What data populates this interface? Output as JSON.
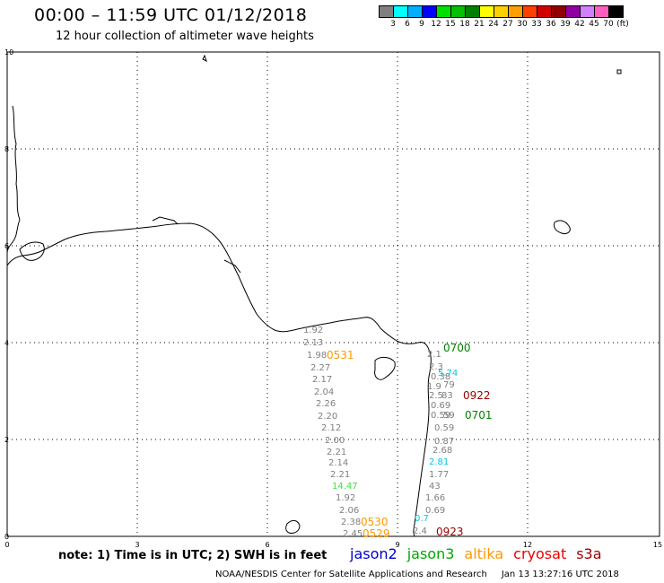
{
  "header": {
    "title": "00:00 – 11:59 UTC 01/12/2018",
    "subtitle": "12 hour collection of altimeter wave heights"
  },
  "colorbar": {
    "unit": "(ft)",
    "colors": [
      "#808080",
      "#00ffff",
      "#00b0ff",
      "#0000ff",
      "#00e000",
      "#00c000",
      "#008000",
      "#ffff00",
      "#ffd000",
      "#ffa000",
      "#ff4000",
      "#d00000",
      "#900000",
      "#9000a0",
      "#d080ff",
      "#ff60c0",
      "#000000"
    ],
    "labels": [
      "3",
      "6",
      "9",
      "12",
      "15",
      "18",
      "21",
      "24",
      "27",
      "30",
      "33",
      "36",
      "39",
      "42",
      "45",
      "70"
    ]
  },
  "axes": {
    "x_ticks": [
      "0",
      "3",
      "6",
      "9",
      "12",
      "15"
    ],
    "y_ticks": [
      "0",
      "2",
      "4",
      "6",
      "8",
      "10"
    ]
  },
  "map_labels": {
    "wave_heights": [
      {
        "text": "1.92",
        "color": "#808080"
      },
      {
        "text": "2.13",
        "color": "#808080"
      },
      {
        "text": "1.98",
        "color": "#808080"
      },
      {
        "text": "2.27",
        "color": "#808080"
      },
      {
        "text": "2.17",
        "color": "#808080"
      },
      {
        "text": "2.04",
        "color": "#808080"
      },
      {
        "text": "2.26",
        "color": "#808080"
      },
      {
        "text": "2.20",
        "color": "#808080"
      },
      {
        "text": "2.12",
        "color": "#808080"
      },
      {
        "text": "2.00",
        "color": "#808080"
      },
      {
        "text": "2.21",
        "color": "#808080"
      },
      {
        "text": "2.14",
        "color": "#808080"
      },
      {
        "text": "2.21",
        "color": "#808080"
      },
      {
        "text": "14.47",
        "color": "#40e040"
      },
      {
        "text": "1.92",
        "color": "#808080"
      },
      {
        "text": "2.06",
        "color": "#808080"
      },
      {
        "text": "2.38",
        "color": "#808080"
      },
      {
        "text": "2.45",
        "color": "#808080"
      },
      {
        "text": "2.1",
        "color": "#808080"
      },
      {
        "text": "2.3",
        "color": "#808080"
      },
      {
        "text": "0.38",
        "color": "#808080"
      },
      {
        "text": "5.74",
        "color": "#00c8e0"
      },
      {
        "text": "79",
        "color": "#808080"
      },
      {
        "text": "1.9",
        "color": "#808080"
      },
      {
        "text": "2.5",
        "color": "#808080"
      },
      {
        "text": "83",
        "color": "#808080"
      },
      {
        "text": "0.69",
        "color": "#808080"
      },
      {
        "text": "0.59",
        "color": "#808080"
      },
      {
        "text": "59",
        "color": "#808080"
      },
      {
        "text": "0.59",
        "color": "#808080"
      },
      {
        "text": "0.87",
        "color": "#808080"
      },
      {
        "text": "2.68",
        "color": "#808080"
      },
      {
        "text": "2.81",
        "color": "#00c8e0"
      },
      {
        "text": "1.77",
        "color": "#808080"
      },
      {
        "text": "43",
        "color": "#808080"
      },
      {
        "text": "1.66",
        "color": "#808080"
      },
      {
        "text": "0.69",
        "color": "#808080"
      },
      {
        "text": "0.7",
        "color": "#00c8e0"
      },
      {
        "text": "2.4",
        "color": "#808080"
      }
    ],
    "pass_times": [
      {
        "text": "0531",
        "color": "#ff9900"
      },
      {
        "text": "0700",
        "color": "#008000"
      },
      {
        "text": "0922",
        "color": "#990000"
      },
      {
        "text": "0701",
        "color": "#008000"
      },
      {
        "text": "0530",
        "color": "#ff9900"
      },
      {
        "text": "0529",
        "color": "#ff9900"
      },
      {
        "text": "0923",
        "color": "#990000"
      }
    ]
  },
  "footer": {
    "note": "note:  1) Time is in UTC;  2) SWH is in feet",
    "satellites": [
      {
        "name": "jason2",
        "color": "#0000cc"
      },
      {
        "name": "jason3",
        "color": "#00aa00"
      },
      {
        "name": "altika",
        "color": "#ff9900"
      },
      {
        "name": "cryosat",
        "color": "#ee0000"
      },
      {
        "name": "s3a",
        "color": "#990000"
      }
    ],
    "credit": "NOAA/NESDIS Center for Satellite Applications and Research",
    "timestamp": "Jan 13 13:27:16 UTC 2018"
  }
}
